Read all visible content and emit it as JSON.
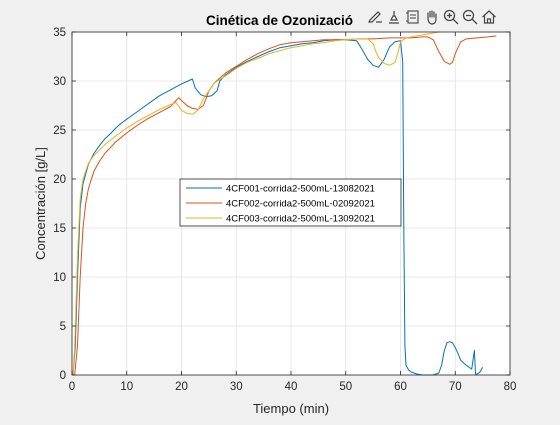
{
  "toolbar": {
    "icons": [
      "brush-edit-icon",
      "data-tip-icon",
      "legend-icon",
      "pan-hand-icon",
      "zoom-in-icon",
      "zoom-out-icon",
      "home-icon"
    ]
  },
  "colors": {
    "figure_bg": "#f0f0f0",
    "axes_bg": "#ffffff",
    "grid": "#e1e1e1",
    "axis": "#262626"
  },
  "chart_data": {
    "type": "line",
    "title": "Cinética de Ozonizació",
    "xlabel": "Tiempo (min)",
    "ylabel": "Concentración [g/L]",
    "xlim": [
      0,
      80
    ],
    "ylim": [
      0,
      35
    ],
    "xticks": [
      0,
      10,
      20,
      30,
      40,
      50,
      60,
      70,
      80
    ],
    "yticks": [
      0,
      5,
      10,
      15,
      20,
      25,
      30,
      35
    ],
    "grid": true,
    "legend_position": "center",
    "series": [
      {
        "name": "4CF001-corrida2-500mL-13082021",
        "color": "#0072bd",
        "points": [
          [
            0.2,
            0
          ],
          [
            0.6,
            3
          ],
          [
            1,
            10
          ],
          [
            1.5,
            17
          ],
          [
            2,
            19.5
          ],
          [
            3,
            21.5
          ],
          [
            4,
            22.6
          ],
          [
            5,
            23.4
          ],
          [
            6,
            24.1
          ],
          [
            7,
            24.6
          ],
          [
            8,
            25.2
          ],
          [
            9,
            25.7
          ],
          [
            10,
            26.1
          ],
          [
            12,
            26.9
          ],
          [
            14,
            27.7
          ],
          [
            16,
            28.5
          ],
          [
            18,
            29.1
          ],
          [
            20,
            29.7
          ],
          [
            22,
            30.2
          ],
          [
            22.5,
            29.3
          ],
          [
            23.5,
            28.6
          ],
          [
            24.5,
            28.4
          ],
          [
            25.5,
            28.5
          ],
          [
            26.5,
            29
          ],
          [
            27,
            30
          ],
          [
            28,
            30.6
          ],
          [
            30,
            31.4
          ],
          [
            32,
            32
          ],
          [
            34,
            32.5
          ],
          [
            36,
            33
          ],
          [
            38,
            33.4
          ],
          [
            40,
            33.6
          ],
          [
            42,
            33.8
          ],
          [
            44,
            33.9
          ],
          [
            46,
            34.1
          ],
          [
            48,
            34.2
          ],
          [
            50,
            34.2
          ],
          [
            52,
            34.1
          ],
          [
            53,
            33.2
          ],
          [
            54,
            32.2
          ],
          [
            55,
            31.6
          ],
          [
            56,
            31.4
          ],
          [
            57,
            32.2
          ],
          [
            58,
            33.5
          ],
          [
            59,
            34
          ],
          [
            60,
            34.1
          ],
          [
            60.4,
            32
          ],
          [
            60.6,
            15
          ],
          [
            60.8,
            3
          ],
          [
            61,
            1
          ],
          [
            61.5,
            0.5
          ],
          [
            62,
            0.3
          ],
          [
            63,
            0.1
          ],
          [
            64,
            0
          ],
          [
            65,
            0
          ],
          [
            66,
            0
          ],
          [
            67,
            0.2
          ],
          [
            67.5,
            1
          ],
          [
            68,
            2.5
          ],
          [
            68.5,
            3.3
          ],
          [
            69,
            3.4
          ],
          [
            69.5,
            3.3
          ],
          [
            70,
            2.8
          ],
          [
            70.5,
            2.2
          ],
          [
            71,
            1.5
          ],
          [
            72,
            1
          ],
          [
            73,
            0.6
          ],
          [
            73.5,
            2.5
          ],
          [
            73.7,
            0.1
          ],
          [
            74,
            0.1
          ],
          [
            74.5,
            0.3
          ],
          [
            75,
            0.8
          ]
        ]
      },
      {
        "name": "4CF002-corrida2-500mL-02092021",
        "color": "#d95319",
        "points": [
          [
            0.5,
            0
          ],
          [
            1,
            3
          ],
          [
            1.5,
            10
          ],
          [
            2,
            15
          ],
          [
            2.5,
            17.5
          ],
          [
            3,
            19
          ],
          [
            4,
            20.8
          ],
          [
            5,
            21.8
          ],
          [
            6,
            22.6
          ],
          [
            8,
            23.8
          ],
          [
            10,
            24.7
          ],
          [
            12,
            25.5
          ],
          [
            14,
            26.2
          ],
          [
            16,
            26.8
          ],
          [
            18,
            27.4
          ],
          [
            19,
            28
          ],
          [
            19.5,
            28.3
          ],
          [
            20,
            28
          ],
          [
            21,
            27.5
          ],
          [
            22,
            27.2
          ],
          [
            23,
            27.1
          ],
          [
            24,
            27.5
          ],
          [
            24.5,
            28.2
          ],
          [
            25,
            29
          ],
          [
            26,
            29.8
          ],
          [
            28,
            30.8
          ],
          [
            30,
            31.5
          ],
          [
            32,
            32.2
          ],
          [
            34,
            32.8
          ],
          [
            36,
            33.3
          ],
          [
            38,
            33.7
          ],
          [
            40,
            33.9
          ],
          [
            42,
            34
          ],
          [
            44,
            34.1
          ],
          [
            46,
            34.2
          ],
          [
            48,
            34.2
          ],
          [
            50,
            34.2
          ],
          [
            52,
            34.3
          ],
          [
            55,
            34.3
          ],
          [
            58,
            34.4
          ],
          [
            60,
            34.4
          ],
          [
            62,
            34.4
          ],
          [
            64,
            34.5
          ],
          [
            65,
            34.5
          ],
          [
            66,
            34.2
          ],
          [
            67,
            33
          ],
          [
            68,
            32
          ],
          [
            69,
            31.7
          ],
          [
            69.5,
            31.9
          ],
          [
            70,
            32.8
          ],
          [
            71,
            34
          ],
          [
            72,
            34.3
          ],
          [
            74,
            34.4
          ],
          [
            76,
            34.5
          ],
          [
            77.5,
            34.6
          ]
        ]
      },
      {
        "name": "4CF003-corrida2-500mL-13092021",
        "color": "#edb120",
        "points": [
          [
            0.2,
            0
          ],
          [
            0.5,
            3
          ],
          [
            1,
            12
          ],
          [
            1.5,
            18
          ],
          [
            2,
            20
          ],
          [
            3,
            21.6
          ],
          [
            4,
            22.4
          ],
          [
            6,
            23.5
          ],
          [
            8,
            24.4
          ],
          [
            10,
            25.2
          ],
          [
            12,
            25.9
          ],
          [
            14,
            26.5
          ],
          [
            16,
            27.1
          ],
          [
            18,
            27.6
          ],
          [
            19,
            27.8
          ],
          [
            20,
            27
          ],
          [
            21,
            26.7
          ],
          [
            22,
            26.6
          ],
          [
            23,
            27
          ],
          [
            24,
            28.2
          ],
          [
            25,
            29
          ],
          [
            26,
            29.8
          ],
          [
            28,
            30.5
          ],
          [
            30,
            31.3
          ],
          [
            32,
            31.9
          ],
          [
            34,
            32.3
          ],
          [
            36,
            32.8
          ],
          [
            38,
            33.1
          ],
          [
            40,
            33.4
          ],
          [
            42,
            33.6
          ],
          [
            44,
            33.8
          ],
          [
            46,
            33.9
          ],
          [
            48,
            34.1
          ],
          [
            50,
            34.2
          ],
          [
            52,
            34.3
          ],
          [
            54,
            34.3
          ],
          [
            55,
            33.8
          ],
          [
            55.5,
            33
          ],
          [
            56,
            32.4
          ],
          [
            57,
            31.8
          ],
          [
            58,
            31.6
          ],
          [
            59,
            31.9
          ],
          [
            59.5,
            32.8
          ],
          [
            60,
            34
          ],
          [
            61,
            34.4
          ],
          [
            63,
            34.6
          ],
          [
            65,
            34.8
          ],
          [
            67,
            35
          ]
        ]
      }
    ]
  }
}
